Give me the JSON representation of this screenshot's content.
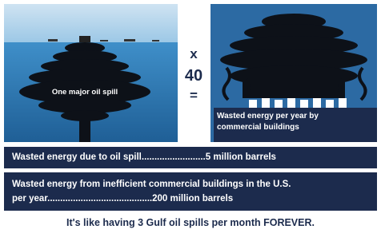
{
  "left_panel": {
    "label": "One major oil spill"
  },
  "multiplier": {
    "symbol": "x",
    "number": "40",
    "equals": "="
  },
  "right_panel": {
    "label": "Wasted energy per year by commercial buildings"
  },
  "rows": [
    {
      "lines": [
        "Wasted energy due to oil spill.........................5 million barrels"
      ]
    },
    {
      "lines": [
        "Wasted energy from inefficient commercial buildings in the U.S.",
        "per year.........................................200 million barrels"
      ]
    }
  ],
  "footer": "It's like having 3 Gulf oil spills per month FOREVER."
}
